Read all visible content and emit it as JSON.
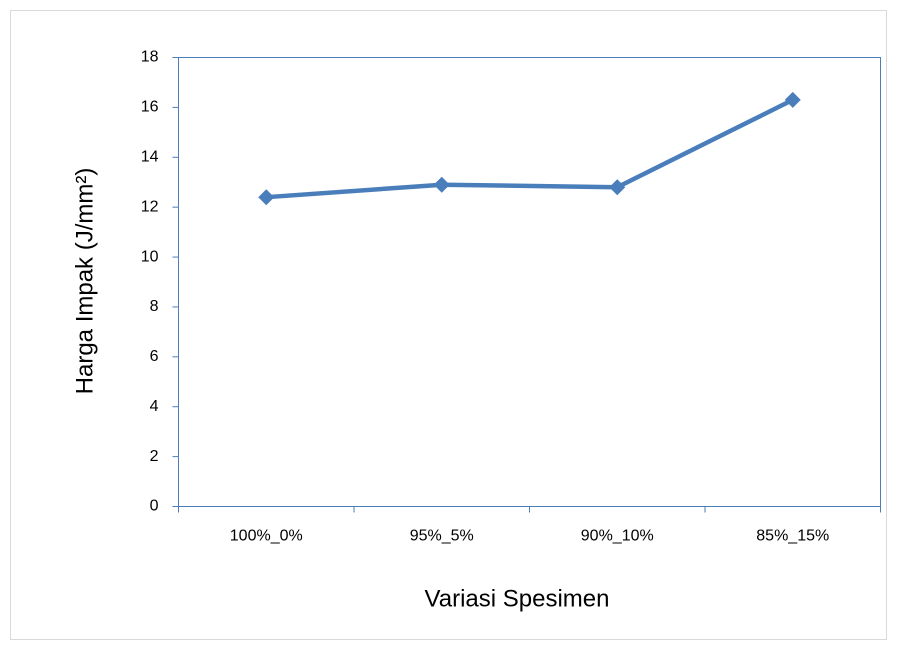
{
  "chart_data": {
    "type": "line",
    "categories": [
      "100%_0%",
      "95%_5%",
      "90%_10%",
      "85%_15%"
    ],
    "values": [
      12.4,
      12.9,
      12.8,
      16.3
    ],
    "color": "#4a7ebb",
    "xlabel": "Variasi Spesimen",
    "ylabel": "Harga Impak (J/mm²)",
    "ylim": [
      0,
      18
    ],
    "yticks": [
      0,
      2,
      4,
      6,
      8,
      10,
      12,
      14,
      16,
      18
    ],
    "grid": false
  }
}
